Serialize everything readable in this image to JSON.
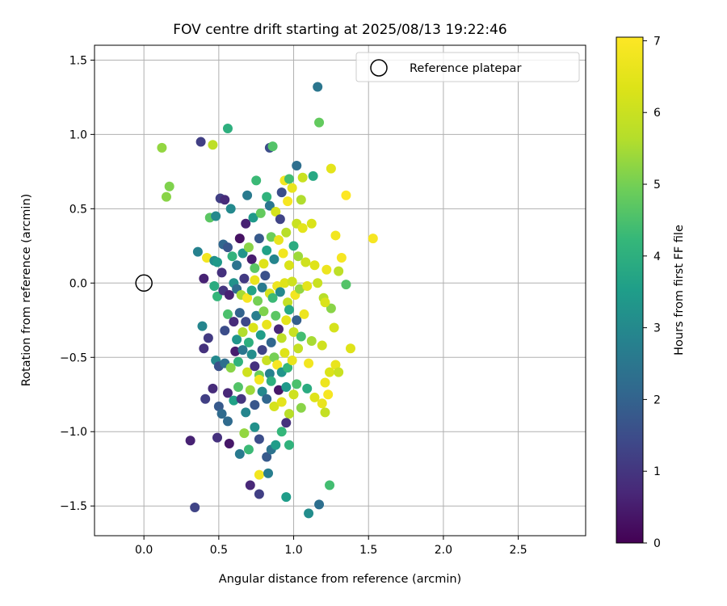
{
  "chart_data": {
    "type": "scatter",
    "title": "FOV centre drift starting at 2025/08/13 19:22:46",
    "xlabel": "Angular distance from reference (arcmin)",
    "ylabel": "Rotation from reference (arcmin)",
    "xlim": [
      -0.33,
      2.95
    ],
    "ylim": [
      -1.7,
      1.6
    ],
    "xticks": [
      0.0,
      0.5,
      1.0,
      1.5,
      2.0,
      2.5
    ],
    "xtick_labels": [
      "0.0",
      "0.5",
      "1.0",
      "1.5",
      "2.0",
      "2.5"
    ],
    "yticks": [
      -1.5,
      -1.0,
      -0.5,
      0.0,
      0.5,
      1.0,
      1.5
    ],
    "ytick_labels": [
      "−1.5",
      "−1.0",
      "−0.5",
      "0.0",
      "0.5",
      "1.0",
      "1.5"
    ],
    "grid": true,
    "legend": {
      "position": "top-right",
      "entries": [
        {
          "label": "Reference platepar",
          "marker": "open-circle"
        }
      ]
    },
    "reference_point": {
      "x": 0.0,
      "y": 0.0
    },
    "colorbar": {
      "label": "Hours from first FF file",
      "min": 0,
      "max": 7.05,
      "ticks": [
        0,
        1,
        2,
        3,
        4,
        5,
        6,
        7
      ],
      "tick_labels": [
        "0",
        "1",
        "2",
        "3",
        "4",
        "5",
        "6",
        "7"
      ],
      "colormap": "viridis"
    },
    "points": [
      [
        1.16,
        1.32,
        2.5
      ],
      [
        0.56,
        1.04,
        4.0
      ],
      [
        0.38,
        0.95,
        1.2
      ],
      [
        0.12,
        0.91,
        5.3
      ],
      [
        0.46,
        0.93,
        5.8
      ],
      [
        0.84,
        0.91,
        1.5
      ],
      [
        0.86,
        0.92,
        4.6
      ],
      [
        1.17,
        1.08,
        4.8
      ],
      [
        1.02,
        0.79,
        2.3
      ],
      [
        1.06,
        0.71,
        6.0
      ],
      [
        1.13,
        0.72,
        3.8
      ],
      [
        1.25,
        0.77,
        6.5
      ],
      [
        0.17,
        0.65,
        5.1
      ],
      [
        0.15,
        0.58,
        5.2
      ],
      [
        0.51,
        0.57,
        1.2
      ],
      [
        0.54,
        0.56,
        0.8
      ],
      [
        0.69,
        0.59,
        2.6
      ],
      [
        0.75,
        0.69,
        4.3
      ],
      [
        0.82,
        0.58,
        4.1
      ],
      [
        0.94,
        0.69,
        6.8
      ],
      [
        0.97,
        0.7,
        4.4
      ],
      [
        0.99,
        0.64,
        6.6
      ],
      [
        1.05,
        0.56,
        5.6
      ],
      [
        0.96,
        0.55,
        6.9
      ],
      [
        0.92,
        0.61,
        1.5
      ],
      [
        0.58,
        0.5,
        3.0
      ],
      [
        0.44,
        0.44,
        4.7
      ],
      [
        0.48,
        0.45,
        3.0
      ],
      [
        0.68,
        0.4,
        0.6
      ],
      [
        0.73,
        0.44,
        3.4
      ],
      [
        0.78,
        0.47,
        4.8
      ],
      [
        0.84,
        0.52,
        2.5
      ],
      [
        0.88,
        0.48,
        6.2
      ],
      [
        0.91,
        0.43,
        1.3
      ],
      [
        1.02,
        0.4,
        6.0
      ],
      [
        1.06,
        0.37,
        6.5
      ],
      [
        1.12,
        0.4,
        6.3
      ],
      [
        1.28,
        0.32,
        6.8
      ],
      [
        1.35,
        0.59,
        7.05
      ],
      [
        1.53,
        0.3,
        6.9
      ],
      [
        0.36,
        0.21,
        2.8
      ],
      [
        0.42,
        0.17,
        6.8
      ],
      [
        0.47,
        0.15,
        3.1
      ],
      [
        0.49,
        0.14,
        3.4
      ],
      [
        0.52,
        0.07,
        0.9
      ],
      [
        0.53,
        0.26,
        2.1
      ],
      [
        0.56,
        0.24,
        1.7
      ],
      [
        0.59,
        0.18,
        4.1
      ],
      [
        0.62,
        0.12,
        2.4
      ],
      [
        0.64,
        0.3,
        0.3
      ],
      [
        0.66,
        0.2,
        3.3
      ],
      [
        0.7,
        0.24,
        5.2
      ],
      [
        0.72,
        0.16,
        0.5
      ],
      [
        0.74,
        0.1,
        4.7
      ],
      [
        0.77,
        0.3,
        1.8
      ],
      [
        0.8,
        0.13,
        6.4
      ],
      [
        0.82,
        0.22,
        3.6
      ],
      [
        0.85,
        0.31,
        4.9
      ],
      [
        0.87,
        0.16,
        2.9
      ],
      [
        0.9,
        0.29,
        6.6
      ],
      [
        0.93,
        0.2,
        6.8
      ],
      [
        0.95,
        0.34,
        5.7
      ],
      [
        0.97,
        0.12,
        6.3
      ],
      [
        1.0,
        0.25,
        3.9
      ],
      [
        1.03,
        0.18,
        5.4
      ],
      [
        1.08,
        0.14,
        6.1
      ],
      [
        1.14,
        0.12,
        6.4
      ],
      [
        1.22,
        0.09,
        6.7
      ],
      [
        1.32,
        0.17,
        6.9
      ],
      [
        1.3,
        0.08,
        5.8
      ],
      [
        0.4,
        0.03,
        0.6
      ],
      [
        0.47,
        -0.02,
        3.9
      ],
      [
        0.49,
        -0.09,
        4.2
      ],
      [
        0.53,
        -0.05,
        1.0
      ],
      [
        0.57,
        -0.08,
        0.6
      ],
      [
        0.6,
        0.0,
        3.2
      ],
      [
        0.62,
        -0.04,
        2.2
      ],
      [
        0.65,
        -0.08,
        5.5
      ],
      [
        0.67,
        0.03,
        1.1
      ],
      [
        0.69,
        -0.1,
        6.9
      ],
      [
        0.72,
        -0.05,
        3.7
      ],
      [
        0.74,
        0.02,
        6.6
      ],
      [
        0.76,
        -0.12,
        5.0
      ],
      [
        0.79,
        -0.03,
        2.6
      ],
      [
        0.81,
        0.05,
        1.6
      ],
      [
        0.84,
        -0.07,
        6.2
      ],
      [
        0.86,
        -0.1,
        4.3
      ],
      [
        0.89,
        -0.02,
        6.7
      ],
      [
        0.91,
        -0.06,
        3.0
      ],
      [
        0.94,
        0.0,
        6.4
      ],
      [
        0.96,
        -0.13,
        5.9
      ],
      [
        0.99,
        0.01,
        6.1
      ],
      [
        1.01,
        -0.08,
        6.8
      ],
      [
        1.04,
        -0.04,
        5.3
      ],
      [
        1.09,
        -0.02,
        6.5
      ],
      [
        1.16,
        0.0,
        6.0
      ],
      [
        1.2,
        -0.1,
        5.7
      ],
      [
        1.35,
        -0.01,
        4.6
      ],
      [
        0.39,
        -0.29,
        2.9
      ],
      [
        0.43,
        -0.37,
        1.1
      ],
      [
        0.54,
        -0.32,
        1.5
      ],
      [
        0.56,
        -0.21,
        4.5
      ],
      [
        0.6,
        -0.26,
        0.8
      ],
      [
        0.62,
        -0.38,
        3.3
      ],
      [
        0.64,
        -0.2,
        2.0
      ],
      [
        0.66,
        -0.33,
        5.6
      ],
      [
        0.68,
        -0.26,
        1.4
      ],
      [
        0.7,
        -0.4,
        4.0
      ],
      [
        0.73,
        -0.3,
        6.3
      ],
      [
        0.75,
        -0.22,
        2.7
      ],
      [
        0.78,
        -0.35,
        3.5
      ],
      [
        0.8,
        -0.19,
        5.1
      ],
      [
        0.82,
        -0.28,
        6.6
      ],
      [
        0.85,
        -0.4,
        2.1
      ],
      [
        0.88,
        -0.22,
        4.7
      ],
      [
        0.9,
        -0.31,
        0.7
      ],
      [
        0.92,
        -0.37,
        5.8
      ],
      [
        0.95,
        -0.25,
        6.5
      ],
      [
        0.97,
        -0.18,
        3.8
      ],
      [
        1.0,
        -0.33,
        6.0
      ],
      [
        1.02,
        -0.25,
        1.9
      ],
      [
        1.05,
        -0.36,
        4.4
      ],
      [
        1.07,
        -0.21,
        6.7
      ],
      [
        1.12,
        -0.39,
        5.5
      ],
      [
        1.19,
        -0.42,
        6.1
      ],
      [
        1.27,
        -0.3,
        6.2
      ],
      [
        1.38,
        -0.44,
        6.4
      ],
      [
        1.25,
        -0.17,
        5.2
      ],
      [
        1.21,
        -0.13,
        6.3
      ],
      [
        0.4,
        -0.44,
        0.9
      ],
      [
        0.48,
        -0.52,
        3.0
      ],
      [
        0.5,
        -0.56,
        1.6
      ],
      [
        0.54,
        -0.54,
        2.3
      ],
      [
        0.58,
        -0.57,
        5.2
      ],
      [
        0.61,
        -0.46,
        0.5
      ],
      [
        0.63,
        -0.53,
        4.1
      ],
      [
        0.66,
        -0.45,
        2.5
      ],
      [
        0.69,
        -0.6,
        6.1
      ],
      [
        0.72,
        -0.48,
        3.1
      ],
      [
        0.74,
        -0.56,
        0.9
      ],
      [
        0.77,
        -0.62,
        4.9
      ],
      [
        0.79,
        -0.45,
        1.3
      ],
      [
        0.82,
        -0.52,
        6.0
      ],
      [
        0.84,
        -0.61,
        2.8
      ],
      [
        0.87,
        -0.5,
        5.0
      ],
      [
        0.89,
        -0.55,
        6.9
      ],
      [
        0.92,
        -0.6,
        3.3
      ],
      [
        0.94,
        -0.47,
        6.4
      ],
      [
        0.96,
        -0.57,
        4.2
      ],
      [
        0.99,
        -0.52,
        6.6
      ],
      [
        1.03,
        -0.44,
        5.9
      ],
      [
        1.1,
        -0.54,
        6.8
      ],
      [
        1.24,
        -0.6,
        6.3
      ],
      [
        1.28,
        -0.55,
        6.6
      ],
      [
        1.3,
        -0.6,
        6.0
      ],
      [
        1.21,
        -0.67,
        6.7
      ],
      [
        0.41,
        -0.78,
        1.2
      ],
      [
        0.46,
        -0.71,
        0.8
      ],
      [
        0.5,
        -0.83,
        1.8
      ],
      [
        0.52,
        -0.88,
        2.2
      ],
      [
        0.56,
        -0.74,
        0.7
      ],
      [
        0.6,
        -0.79,
        3.6
      ],
      [
        0.63,
        -0.7,
        4.6
      ],
      [
        0.65,
        -0.78,
        1.0
      ],
      [
        0.68,
        -0.87,
        2.9
      ],
      [
        0.71,
        -0.72,
        5.4
      ],
      [
        0.74,
        -0.82,
        1.7
      ],
      [
        0.77,
        -0.65,
        6.8
      ],
      [
        0.79,
        -0.73,
        3.0
      ],
      [
        0.82,
        -0.78,
        2.1
      ],
      [
        0.85,
        -0.66,
        4.0
      ],
      [
        0.87,
        -0.83,
        6.2
      ],
      [
        0.9,
        -0.72,
        0.4
      ],
      [
        0.92,
        -0.8,
        6.5
      ],
      [
        0.95,
        -0.7,
        3.4
      ],
      [
        0.97,
        -0.88,
        5.7
      ],
      [
        1.0,
        -0.75,
        6.1
      ],
      [
        1.02,
        -0.68,
        4.5
      ],
      [
        1.05,
        -0.84,
        5.2
      ],
      [
        1.09,
        -0.71,
        3.9
      ],
      [
        1.14,
        -0.77,
        6.4
      ],
      [
        1.19,
        -0.81,
        6.6
      ],
      [
        1.23,
        -0.75,
        6.9
      ],
      [
        1.21,
        -0.87,
        5.9
      ],
      [
        0.31,
        -1.06,
        0.6
      ],
      [
        0.49,
        -1.04,
        0.9
      ],
      [
        0.56,
        -0.93,
        2.2
      ],
      [
        0.57,
        -1.08,
        0.4
      ],
      [
        0.64,
        -1.15,
        2.6
      ],
      [
        0.67,
        -1.01,
        5.3
      ],
      [
        0.7,
        -1.12,
        4.3
      ],
      [
        0.74,
        -0.97,
        3.2
      ],
      [
        0.77,
        -1.05,
        1.5
      ],
      [
        0.82,
        -1.17,
        1.8
      ],
      [
        0.85,
        -1.12,
        2.4
      ],
      [
        0.88,
        -1.09,
        3.5
      ],
      [
        0.92,
        -1.0,
        4.2
      ],
      [
        0.95,
        -0.94,
        0.9
      ],
      [
        0.97,
        -1.09,
        4.1
      ],
      [
        0.71,
        -1.36,
        0.7
      ],
      [
        0.77,
        -1.29,
        6.8
      ],
      [
        0.77,
        -1.42,
        1.2
      ],
      [
        0.83,
        -1.28,
        2.7
      ],
      [
        0.95,
        -1.44,
        3.5
      ],
      [
        1.1,
        -1.55,
        3.1
      ],
      [
        1.17,
        -1.49,
        2.3
      ],
      [
        1.24,
        -1.36,
        4.4
      ],
      [
        0.34,
        -1.51,
        1.3
      ]
    ]
  }
}
